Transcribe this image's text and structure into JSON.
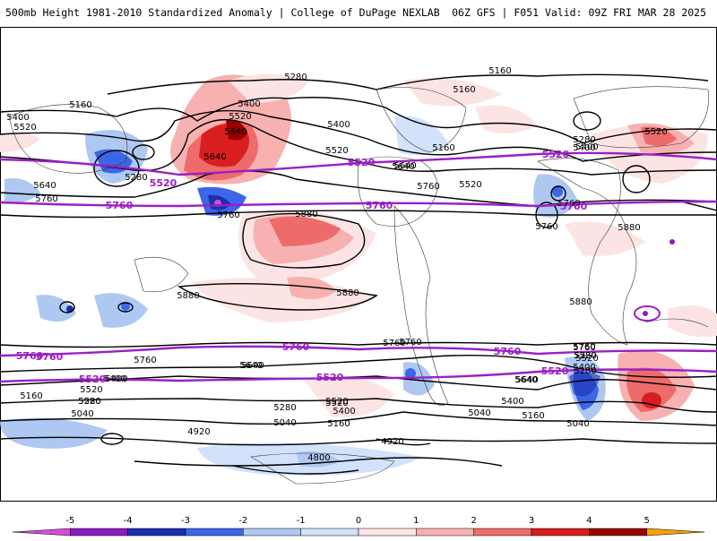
{
  "header": {
    "title": "500mb Height 1981-2010 Standardized Anomaly | College of DuPage NEXLAB",
    "run_info": "06Z GFS | F051 Valid: 09Z FRI MAR 28 2025"
  },
  "colors": {
    "contour": "#000000",
    "highlight_contour": "#9b1fc4",
    "coast": "#333333"
  },
  "legend": {
    "ticks": [
      "-5",
      "-4",
      "-3",
      "-2",
      "-1",
      "0",
      "1",
      "2",
      "3",
      "4",
      "5"
    ],
    "colors": [
      "#d84cd8",
      "#8a1cc4",
      "#1a2fb0",
      "#3c66e8",
      "#aec8f2",
      "#d2e2fa",
      "#fde4e4",
      "#f7b1b1",
      "#ee6b6b",
      "#d81e1e",
      "#9a0000",
      "#f2a300"
    ]
  },
  "map": {
    "projection": "global cylindrical",
    "fields": [
      "500mb height contours (dm)",
      "standardized anomaly shading"
    ],
    "contour_labels": [
      "5280",
      "5160",
      "5160",
      "5400",
      "5520",
      "5160",
      "5400",
      "5400",
      "5520",
      "5640",
      "5640",
      "5280",
      "5520",
      "5640",
      "5760",
      "5760",
      "5520",
      "5400",
      "5160",
      "5520",
      "5280",
      "5400",
      "5640",
      "5760",
      "5640",
      "5760",
      "5760",
      "5880",
      "5880",
      "5880",
      "5880",
      "5880",
      "5760",
      "5760",
      "5520",
      "5640",
      "5760",
      "5520",
      "5400",
      "5280",
      "5160",
      "5040",
      "5400",
      "5520",
      "5400",
      "5280",
      "5160",
      "5040",
      "4920",
      "4920",
      "4800",
      "5040",
      "5640",
      "5760",
      "5520",
      "5520",
      "5400",
      "5280",
      "5040",
      "5160",
      "5280",
      "5400",
      "5640",
      "5760",
      "5520",
      "5640"
    ],
    "highlight_labels": [
      "5520",
      "5520",
      "5520",
      "5760",
      "5760",
      "5760",
      "5760",
      "5760",
      "5760",
      "5760",
      "5520",
      "5520",
      "5520"
    ]
  }
}
